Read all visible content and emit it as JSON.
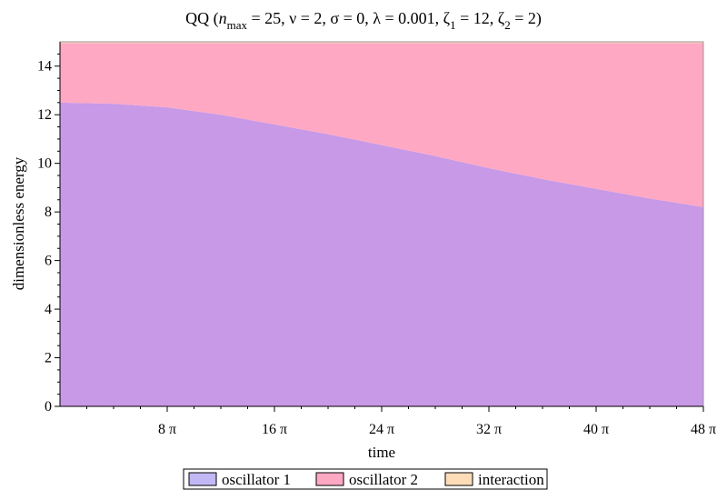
{
  "chart_data": {
    "type": "area",
    "stacked": true,
    "title": {
      "prefix": "QQ",
      "parts": [
        {
          "text": "("
        },
        {
          "text": "n",
          "italic": true
        },
        {
          "text": "max",
          "sub": true
        },
        {
          "text": " = 25, ν = 2, σ = 0, λ = 0.001, ζ"
        },
        {
          "text": "1",
          "sub": true
        },
        {
          "text": " = 12, ζ"
        },
        {
          "text": "2",
          "sub": true
        },
        {
          "text": " = 2)"
        }
      ]
    },
    "xlabel": "time",
    "ylabel": "dimensionless energy",
    "xlim": [
      0,
      48
    ],
    "ylim": [
      0,
      15
    ],
    "x_unit": "π",
    "x_ticks": [
      {
        "value": 8,
        "label": "8 π"
      },
      {
        "value": 16,
        "label": "16 π"
      },
      {
        "value": 24,
        "label": "24 π"
      },
      {
        "value": 32,
        "label": "32 π"
      },
      {
        "value": 40,
        "label": "40 π"
      },
      {
        "value": 48,
        "label": "48 π"
      }
    ],
    "y_ticks": [
      0,
      2,
      4,
      6,
      8,
      10,
      12,
      14
    ],
    "grid": false,
    "legend_placement": "bottom",
    "x": [
      0,
      4,
      8,
      12,
      16,
      20,
      24,
      28,
      32,
      36,
      40,
      44,
      48
    ],
    "series": [
      {
        "name": "oscillator 1",
        "color": "#c799e6",
        "legend_color": "#c2b8f5",
        "values": [
          12.5,
          12.45,
          12.3,
          12.0,
          11.6,
          11.2,
          10.75,
          10.3,
          9.8,
          9.35,
          8.95,
          8.55,
          8.2
        ]
      },
      {
        "name": "oscillator 2",
        "color": "#ffa8c4",
        "legend_color": "#ffa8c4",
        "values": [
          2.45,
          2.5,
          2.65,
          2.95,
          3.35,
          3.75,
          4.2,
          4.65,
          5.15,
          5.6,
          6.0,
          6.4,
          6.75
        ]
      },
      {
        "name": "interaction",
        "color": "#ffd9b0",
        "legend_color": "#ffdcb8",
        "values": [
          0.05,
          0.05,
          0.05,
          0.05,
          0.05,
          0.05,
          0.05,
          0.05,
          0.05,
          0.05,
          0.05,
          0.05,
          0.05
        ]
      }
    ]
  }
}
